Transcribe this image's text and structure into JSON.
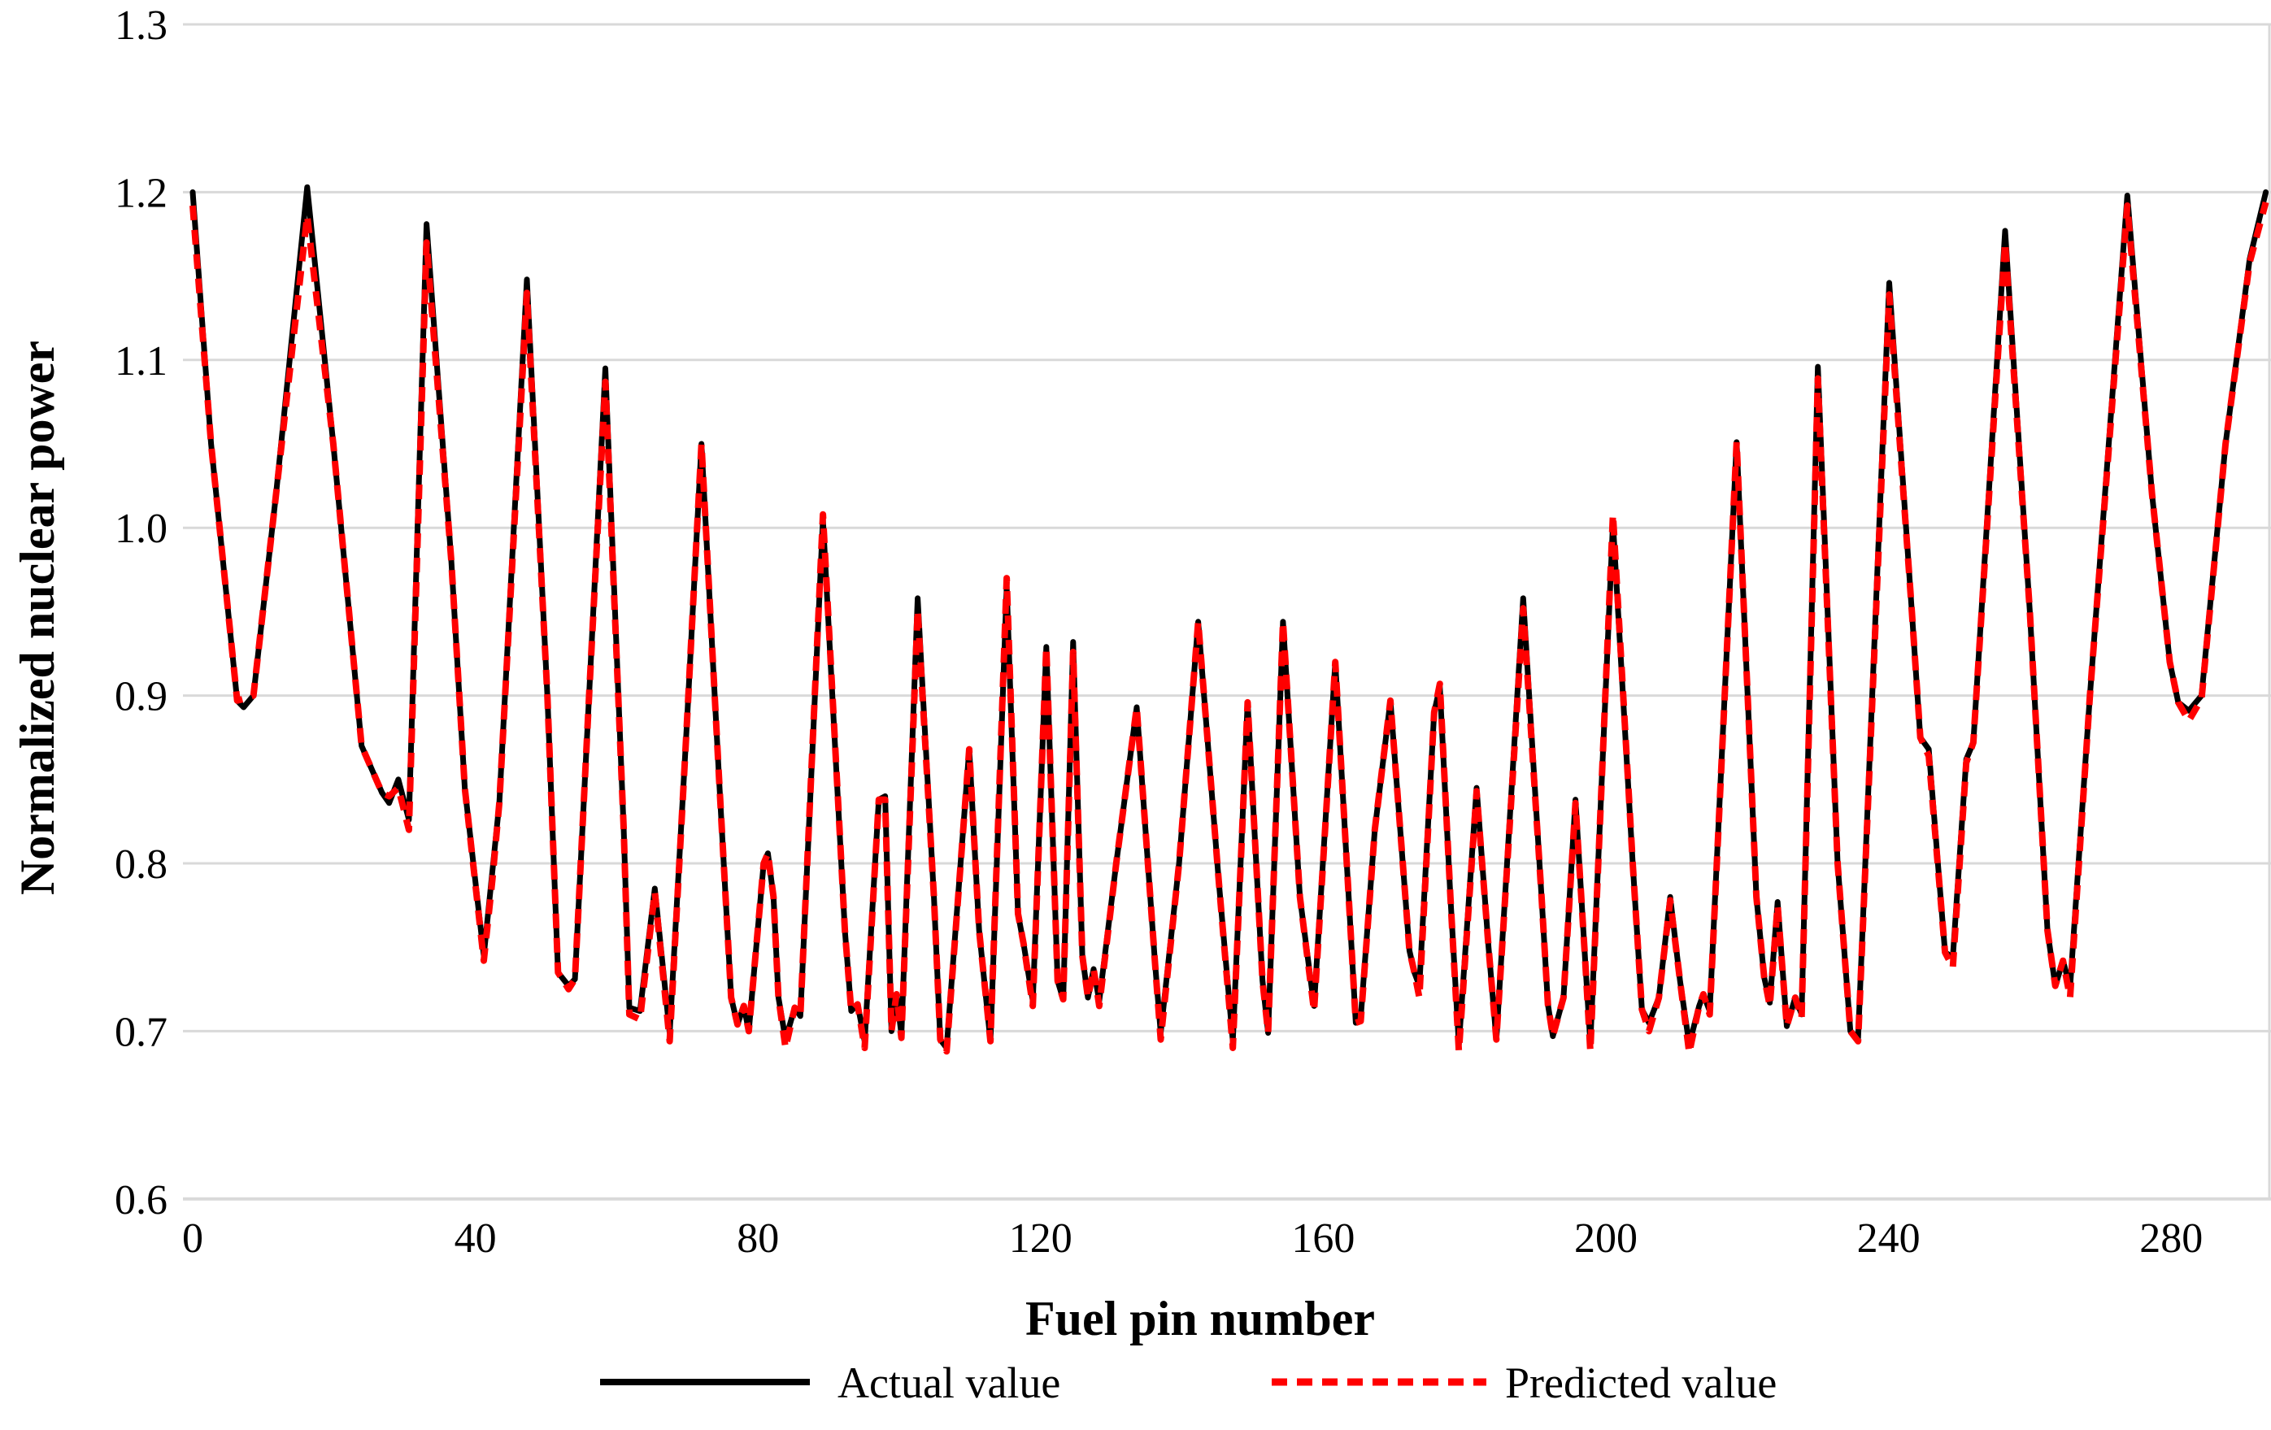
{
  "page": {
    "background": "#ffffff"
  },
  "y_axis": {
    "title": "Normalized nuclear power",
    "tick_labels": [
      "0.6",
      "0.7",
      "0.8",
      "0.9",
      "1.0",
      "1.1",
      "1.2",
      "1.3"
    ],
    "tick_values": [
      0.6,
      0.7,
      0.8,
      0.9,
      1.0,
      1.1,
      1.2,
      1.3
    ]
  },
  "x_axis": {
    "title": "Fuel pin number",
    "tick_labels": [
      "0",
      "40",
      "80",
      "120",
      "160",
      "200",
      "240",
      "280"
    ],
    "tick_values": [
      0,
      40,
      80,
      120,
      160,
      200,
      240,
      280
    ]
  },
  "legend": {
    "items": [
      {
        "label": "Actual value",
        "color": "#000000",
        "line_style": "solid"
      },
      {
        "label": "Predicted value",
        "color": "#ff0000",
        "line_style": "dashed"
      }
    ]
  },
  "colors": {
    "actual": "#000000",
    "predicted": "#ff0000",
    "gridline": "#d9d9d9",
    "axis_text": "#000000"
  },
  "chart_data": {
    "type": "line",
    "title": "",
    "xlabel": "Fuel pin number",
    "ylabel": "Normalized nuclear power",
    "xlim": [
      0,
      294
    ],
    "ylim": [
      0.6,
      1.3
    ],
    "grid": true,
    "legend_position": "bottom",
    "series_names": [
      "Actual value",
      "Predicted value"
    ],
    "points_format": [
      "fuel_pin",
      "actual_value",
      "predicted_value"
    ],
    "points": [
      [
        0,
        1.2,
        1.192
      ],
      [
        2.6,
        1.05,
        1.05
      ],
      [
        6.3,
        0.897,
        0.897
      ],
      [
        7.2,
        0.893,
        0.898
      ],
      [
        8.6,
        0.9,
        0.9
      ],
      [
        11.8,
        1.02,
        1.02
      ],
      [
        16.2,
        1.203,
        1.186
      ],
      [
        19.9,
        1.05,
        1.05
      ],
      [
        23.9,
        0.87,
        0.87
      ],
      [
        26.8,
        0.842,
        0.842
      ],
      [
        27.8,
        0.836,
        0.84
      ],
      [
        29.1,
        0.85,
        0.845
      ],
      [
        30.6,
        0.826,
        0.82
      ],
      [
        33.1,
        1.181,
        1.17
      ],
      [
        36.6,
        0.98,
        0.98
      ],
      [
        38.5,
        0.845,
        0.845
      ],
      [
        41.2,
        0.745,
        0.742
      ],
      [
        42.4,
        0.795,
        0.79
      ],
      [
        43.4,
        0.836,
        0.836
      ],
      [
        47.3,
        1.148,
        1.14
      ],
      [
        50.2,
        0.9,
        0.9
      ],
      [
        51.7,
        0.735,
        0.735
      ],
      [
        53.2,
        0.727,
        0.725
      ],
      [
        54.1,
        0.731,
        0.731
      ],
      [
        56.1,
        0.9,
        0.9
      ],
      [
        58.4,
        1.095,
        1.087
      ],
      [
        61.0,
        0.82,
        0.82
      ],
      [
        61.8,
        0.714,
        0.71
      ],
      [
        63.3,
        0.712,
        0.707
      ],
      [
        65.4,
        0.785,
        0.783
      ],
      [
        67.5,
        0.699,
        0.694
      ],
      [
        69.9,
        0.88,
        0.88
      ],
      [
        72.0,
        1.05,
        1.05
      ],
      [
        74.5,
        0.85,
        0.85
      ],
      [
        76.2,
        0.72,
        0.72
      ],
      [
        77.1,
        0.704,
        0.704
      ],
      [
        78.0,
        0.715,
        0.715
      ],
      [
        78.7,
        0.7,
        0.7
      ],
      [
        80.8,
        0.8,
        0.8
      ],
      [
        81.4,
        0.806,
        0.806
      ],
      [
        82.2,
        0.78,
        0.78
      ],
      [
        82.9,
        0.72,
        0.72
      ],
      [
        83.9,
        0.695,
        0.69
      ],
      [
        85.2,
        0.714,
        0.714
      ],
      [
        86.0,
        0.709,
        0.709
      ],
      [
        89.2,
        1.005,
        1.008
      ],
      [
        92.3,
        0.76,
        0.76
      ],
      [
        93.2,
        0.712,
        0.712
      ],
      [
        94.1,
        0.716,
        0.716
      ],
      [
        95.1,
        0.694,
        0.69
      ],
      [
        97.1,
        0.838,
        0.838
      ],
      [
        98.0,
        0.84,
        0.838
      ],
      [
        98.9,
        0.7,
        0.7
      ],
      [
        99.6,
        0.722,
        0.722
      ],
      [
        100.3,
        0.698,
        0.696
      ],
      [
        102.6,
        0.958,
        0.951
      ],
      [
        104.9,
        0.78,
        0.78
      ],
      [
        105.8,
        0.695,
        0.695
      ],
      [
        106.7,
        0.69,
        0.688
      ],
      [
        109.9,
        0.868,
        0.868
      ],
      [
        111.3,
        0.76,
        0.76
      ],
      [
        112.9,
        0.694,
        0.694
      ],
      [
        115.2,
        0.965,
        0.97
      ],
      [
        116.8,
        0.77,
        0.77
      ],
      [
        117.6,
        0.752,
        0.752
      ],
      [
        118.9,
        0.718,
        0.715
      ],
      [
        120.8,
        0.929,
        0.929
      ],
      [
        122.4,
        0.73,
        0.73
      ],
      [
        123.2,
        0.719,
        0.719
      ],
      [
        124.6,
        0.932,
        0.926
      ],
      [
        125.9,
        0.745,
        0.745
      ],
      [
        126.7,
        0.72,
        0.72
      ],
      [
        127.5,
        0.737,
        0.737
      ],
      [
        128.3,
        0.718,
        0.715
      ],
      [
        130.7,
        0.8,
        0.8
      ],
      [
        133.6,
        0.893,
        0.893
      ],
      [
        136.2,
        0.74,
        0.74
      ],
      [
        137.0,
        0.699,
        0.695
      ],
      [
        139.6,
        0.8,
        0.8
      ],
      [
        142.3,
        0.944,
        0.944
      ],
      [
        145.2,
        0.79,
        0.79
      ],
      [
        147.2,
        0.694,
        0.69
      ],
      [
        149.3,
        0.896,
        0.896
      ],
      [
        151.4,
        0.73,
        0.73
      ],
      [
        152.2,
        0.699,
        0.699
      ],
      [
        154.3,
        0.944,
        0.944
      ],
      [
        156.7,
        0.78,
        0.78
      ],
      [
        158.7,
        0.715,
        0.712
      ],
      [
        161.7,
        0.92,
        0.92
      ],
      [
        163.6,
        0.78,
        0.78
      ],
      [
        164.6,
        0.705,
        0.705
      ],
      [
        165.3,
        0.708,
        0.706
      ],
      [
        167.3,
        0.82,
        0.82
      ],
      [
        169.5,
        0.897,
        0.897
      ],
      [
        172.2,
        0.748,
        0.748
      ],
      [
        172.9,
        0.735,
        0.735
      ],
      [
        173.6,
        0.727,
        0.72
      ],
      [
        175.7,
        0.89,
        0.89
      ],
      [
        176.5,
        0.905,
        0.907
      ],
      [
        178.0,
        0.78,
        0.78
      ],
      [
        179.2,
        0.692,
        0.688
      ],
      [
        181.7,
        0.845,
        0.843
      ],
      [
        183.4,
        0.75,
        0.75
      ],
      [
        184.5,
        0.695,
        0.695
      ],
      [
        188.3,
        0.958,
        0.952
      ],
      [
        190.9,
        0.78,
        0.78
      ],
      [
        191.8,
        0.716,
        0.716
      ],
      [
        192.5,
        0.697,
        0.697
      ],
      [
        194.0,
        0.72,
        0.72
      ],
      [
        195.7,
        0.838,
        0.836
      ],
      [
        197.1,
        0.74,
        0.74
      ],
      [
        197.8,
        0.693,
        0.688
      ],
      [
        201.0,
        1.003,
        1.008
      ],
      [
        203.8,
        0.8,
        0.8
      ],
      [
        205.1,
        0.713,
        0.713
      ],
      [
        206.1,
        0.705,
        0.7
      ],
      [
        207.5,
        0.72,
        0.72
      ],
      [
        209.1,
        0.78,
        0.778
      ],
      [
        210.5,
        0.73,
        0.73
      ],
      [
        211.8,
        0.692,
        0.687
      ],
      [
        213.2,
        0.715,
        0.715
      ],
      [
        213.8,
        0.722,
        0.722
      ],
      [
        214.7,
        0.712,
        0.71
      ],
      [
        218.5,
        1.051,
        1.051
      ],
      [
        221.3,
        0.78,
        0.78
      ],
      [
        222.4,
        0.732,
        0.732
      ],
      [
        223.2,
        0.717,
        0.715
      ],
      [
        224.3,
        0.777,
        0.775
      ],
      [
        225.6,
        0.703,
        0.703
      ],
      [
        226.8,
        0.72,
        0.72
      ],
      [
        227.7,
        0.71,
        0.708
      ],
      [
        230.0,
        1.096,
        1.089
      ],
      [
        232.8,
        0.8,
        0.8
      ],
      [
        234.6,
        0.7,
        0.7
      ],
      [
        235.7,
        0.696,
        0.694
      ],
      [
        240.1,
        1.146,
        1.139
      ],
      [
        243.3,
        0.95,
        0.95
      ],
      [
        244.5,
        0.875,
        0.875
      ],
      [
        245.7,
        0.868,
        0.864
      ],
      [
        248.0,
        0.747,
        0.747
      ],
      [
        249.1,
        0.744,
        0.738
      ],
      [
        251.0,
        0.862,
        0.86
      ],
      [
        252.0,
        0.872,
        0.872
      ],
      [
        256.5,
        1.177,
        1.17
      ],
      [
        260.0,
        0.95,
        0.95
      ],
      [
        262.5,
        0.76,
        0.76
      ],
      [
        263.6,
        0.727,
        0.727
      ],
      [
        264.7,
        0.742,
        0.742
      ],
      [
        265.7,
        0.726,
        0.72
      ],
      [
        268.5,
        0.9,
        0.9
      ],
      [
        273.8,
        1.198,
        1.192
      ],
      [
        277.3,
        1.02,
        1.02
      ],
      [
        279.8,
        0.92,
        0.92
      ],
      [
        281.0,
        0.896,
        0.896
      ],
      [
        282.5,
        0.891,
        0.885
      ],
      [
        284.3,
        0.9,
        0.898
      ],
      [
        287.7,
        1.05,
        1.05
      ],
      [
        291.1,
        1.16,
        1.158
      ],
      [
        293.4,
        1.2,
        1.194
      ]
    ]
  }
}
